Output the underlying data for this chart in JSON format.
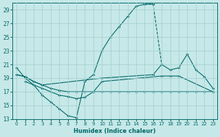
{
  "background_color": "#c6e8e8",
  "grid_color": "#a8d0d0",
  "line_color": "#006666",
  "xlabel": "Humidex (Indice chaleur)",
  "xlim": [
    0,
    23
  ],
  "ylim": [
    13,
    30
  ],
  "xticks": [
    0,
    1,
    2,
    3,
    4,
    5,
    6,
    7,
    8,
    9,
    10,
    11,
    12,
    13,
    14,
    15,
    16,
    17,
    18,
    19,
    20,
    21,
    22,
    23
  ],
  "yticks": [
    13,
    15,
    17,
    19,
    21,
    23,
    25,
    27,
    29
  ],
  "segments": [
    {
      "x": [
        0,
        1,
        2,
        3,
        4,
        5,
        6,
        7,
        8,
        9,
        10,
        11,
        12,
        13,
        14,
        15,
        16
      ],
      "y": [
        20.5,
        19.0,
        18.0,
        16.5,
        15.5,
        14.5,
        13.5,
        13.2,
        18.5,
        19.5,
        23.0,
        25.0,
        26.5,
        28.0,
        29.5,
        29.8,
        29.8
      ],
      "dashed": false
    },
    {
      "x": [
        15,
        16,
        17
      ],
      "y": [
        29.8,
        29.8,
        21.0
      ],
      "dashed": true
    },
    {
      "x": [
        0,
        1,
        2,
        3,
        4,
        5,
        6,
        7,
        8,
        9,
        10,
        11,
        12,
        13,
        14,
        15,
        16,
        17,
        18,
        19,
        20,
        21,
        22,
        23
      ],
      "y": [
        19.5,
        19.2,
        18.5,
        18.0,
        17.5,
        17.2,
        17.0,
        17.0,
        17.0,
        17.0,
        17.0,
        17.0,
        17.0,
        17.0,
        17.0,
        17.0,
        17.0,
        17.0,
        17.0,
        17.0,
        17.0,
        17.0,
        17.0,
        17.0
      ],
      "dashed": false
    },
    {
      "x": [
        0,
        1,
        2,
        3,
        10,
        16,
        17,
        18,
        19,
        20,
        21,
        22,
        23
      ],
      "y": [
        19.5,
        19.2,
        18.5,
        18.0,
        19.0,
        19.5,
        21.0,
        20.2,
        20.5,
        22.5,
        20.2,
        19.2,
        17.5
      ],
      "dashed": false
    },
    {
      "x": [
        1,
        2,
        3,
        4,
        5,
        6,
        7,
        8,
        9,
        10,
        17,
        18,
        19,
        23
      ],
      "y": [
        18.5,
        18.0,
        17.5,
        17.0,
        16.5,
        16.3,
        16.0,
        16.2,
        17.0,
        18.5,
        19.3,
        19.3,
        19.3,
        17.0
      ],
      "dashed": false
    }
  ]
}
